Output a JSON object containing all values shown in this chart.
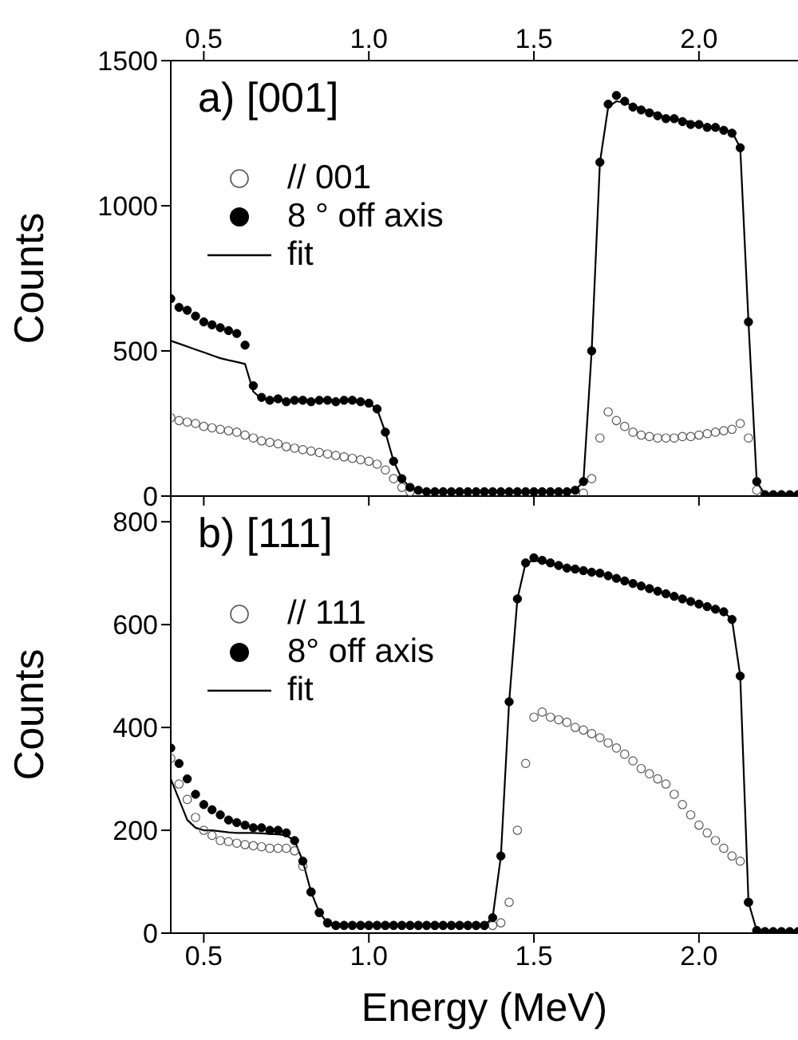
{
  "chart_data": [
    {
      "type": "scatter",
      "ylabel": "Counts",
      "annotations": [
        "a) [001]"
      ],
      "legend": "top left",
      "tick_labels": "y",
      "xlim": [
        0.4,
        2.3
      ],
      "xticks": [
        {
          "value": 0.5,
          "label": null
        },
        {
          "value": 1,
          "label": null
        },
        {
          "value": 1.5,
          "label": null
        },
        {
          "value": 2,
          "label": null
        }
      ],
      "x2lim": [
        0.4,
        2.3
      ],
      "x2ticks": [
        {
          "value": 0.5,
          "label": "0.5"
        },
        {
          "value": 1,
          "label": "1.0"
        },
        {
          "value": 1.5,
          "label": "1.5"
        },
        {
          "value": 2,
          "label": "2.0"
        }
      ],
      "ylim": [
        0,
        1500
      ],
      "yticks": [
        0,
        500,
        1000,
        1500
      ],
      "x": [
        0.4,
        0.425,
        0.45,
        0.475,
        0.5,
        0.525,
        0.55,
        0.575,
        0.6,
        0.625,
        0.65,
        0.675,
        0.7,
        0.725,
        0.75,
        0.775,
        0.8,
        0.825,
        0.85,
        0.875,
        0.9,
        0.925,
        0.95,
        0.975,
        1.0,
        1.025,
        1.05,
        1.075,
        1.1,
        1.125,
        1.15,
        1.175,
        1.2,
        1.225,
        1.25,
        1.275,
        1.3,
        1.325,
        1.35,
        1.375,
        1.4,
        1.425,
        1.45,
        1.475,
        1.5,
        1.525,
        1.55,
        1.575,
        1.6,
        1.625,
        1.65,
        1.675,
        1.7,
        1.725,
        1.75,
        1.775,
        1.8,
        1.825,
        1.85,
        1.875,
        1.9,
        1.925,
        1.95,
        1.975,
        2.0,
        2.025,
        2.05,
        2.075,
        2.1,
        2.125,
        2.15,
        2.175,
        2.2,
        2.225,
        2.25,
        2.275,
        2.3
      ],
      "series": [
        {
          "name": "// 001",
          "marker": "circle-open",
          "color": "#555555",
          "values": [
            270,
            260,
            255,
            250,
            240,
            235,
            230,
            225,
            220,
            210,
            200,
            190,
            185,
            180,
            170,
            165,
            160,
            155,
            150,
            145,
            140,
            135,
            130,
            125,
            120,
            110,
            90,
            60,
            30,
            15,
            null,
            null,
            null,
            null,
            null,
            null,
            null,
            null,
            null,
            null,
            null,
            null,
            null,
            null,
            null,
            null,
            null,
            null,
            null,
            null,
            10,
            60,
            200,
            290,
            260,
            240,
            220,
            210,
            205,
            200,
            200,
            200,
            205,
            205,
            210,
            215,
            220,
            225,
            230,
            250,
            200,
            20,
            null,
            null,
            null,
            null,
            null
          ]
        },
        {
          "name": "8 ° off axis",
          "marker": "circle",
          "color": "#000000",
          "values": [
            680,
            650,
            640,
            620,
            600,
            590,
            580,
            570,
            560,
            520,
            380,
            340,
            330,
            335,
            325,
            330,
            330,
            325,
            330,
            330,
            325,
            330,
            330,
            325,
            320,
            300,
            220,
            120,
            60,
            30,
            20,
            15,
            15,
            15,
            15,
            15,
            15,
            15,
            15,
            15,
            15,
            15,
            15,
            15,
            15,
            15,
            15,
            15,
            15,
            20,
            50,
            500,
            1150,
            1350,
            1380,
            1360,
            1340,
            1330,
            1320,
            1310,
            1300,
            1300,
            1290,
            1280,
            1280,
            1270,
            1270,
            1260,
            1250,
            1200,
            600,
            50,
            5,
            5,
            5,
            5,
            5
          ]
        },
        {
          "name": "fit",
          "type": "line",
          "marker": "none",
          "color": "#000000",
          "values": [
            535,
            525,
            515,
            505,
            495,
            485,
            475,
            468,
            462,
            455,
            360,
            335,
            330,
            330,
            330,
            330,
            330,
            330,
            330,
            330,
            330,
            328,
            326,
            324,
            320,
            300,
            220,
            120,
            60,
            30,
            20,
            15,
            15,
            15,
            15,
            15,
            15,
            15,
            15,
            15,
            15,
            15,
            15,
            15,
            15,
            15,
            15,
            15,
            15,
            20,
            50,
            500,
            1150,
            1340,
            1360,
            1355,
            1345,
            1335,
            1325,
            1315,
            1305,
            1300,
            1295,
            1288,
            1280,
            1275,
            1270,
            1262,
            1255,
            1200,
            600,
            50,
            5,
            5,
            5,
            5,
            5
          ]
        }
      ]
    },
    {
      "type": "scatter",
      "xlabel": "Energy (MeV)",
      "ylabel": "Counts",
      "annotations": [
        "b) [111]"
      ],
      "legend": "top left",
      "xlim": [
        0.4,
        2.3
      ],
      "xticks": [
        {
          "value": 0.5,
          "label": "0.5"
        },
        {
          "value": 1,
          "label": "1.0"
        },
        {
          "value": 1.5,
          "label": "1.5"
        },
        {
          "value": 2,
          "label": "2.0"
        }
      ],
      "ylim": [
        0,
        850
      ],
      "yticks": [
        0,
        200,
        400,
        600,
        800
      ],
      "x": [
        0.4,
        0.425,
        0.45,
        0.475,
        0.5,
        0.525,
        0.55,
        0.575,
        0.6,
        0.625,
        0.65,
        0.675,
        0.7,
        0.725,
        0.75,
        0.775,
        0.8,
        0.825,
        0.85,
        0.875,
        0.9,
        0.925,
        0.95,
        0.975,
        1.0,
        1.025,
        1.05,
        1.075,
        1.1,
        1.125,
        1.15,
        1.175,
        1.2,
        1.225,
        1.25,
        1.275,
        1.3,
        1.325,
        1.35,
        1.375,
        1.4,
        1.425,
        1.45,
        1.475,
        1.5,
        1.525,
        1.55,
        1.575,
        1.6,
        1.625,
        1.65,
        1.675,
        1.7,
        1.725,
        1.75,
        1.775,
        1.8,
        1.825,
        1.85,
        1.875,
        1.9,
        1.925,
        1.95,
        1.975,
        2.0,
        2.025,
        2.05,
        2.075,
        2.1,
        2.125,
        2.15,
        2.175,
        2.2,
        2.225,
        2.25,
        2.275,
        2.3
      ],
      "series": [
        {
          "name": "// 111",
          "marker": "circle-open",
          "color": "#555555",
          "values": [
            340,
            290,
            260,
            225,
            200,
            190,
            180,
            178,
            175,
            172,
            170,
            168,
            165,
            165,
            165,
            160,
            130,
            80,
            40,
            20,
            15,
            15,
            15,
            15,
            15,
            15,
            15,
            15,
            15,
            15,
            15,
            15,
            15,
            15,
            15,
            15,
            15,
            15,
            15,
            15,
            20,
            60,
            200,
            330,
            420,
            430,
            420,
            415,
            410,
            400,
            395,
            388,
            380,
            370,
            360,
            348,
            335,
            320,
            310,
            300,
            290,
            270,
            250,
            230,
            210,
            195,
            180,
            165,
            150,
            140,
            60,
            5,
            2,
            2,
            2,
            2,
            null
          ]
        },
        {
          "name": "8° off axis",
          "marker": "circle",
          "color": "#000000",
          "values": [
            360,
            330,
            300,
            270,
            250,
            240,
            230,
            220,
            215,
            210,
            205,
            205,
            200,
            200,
            195,
            180,
            140,
            80,
            40,
            20,
            15,
            15,
            15,
            15,
            15,
            15,
            15,
            15,
            15,
            15,
            15,
            15,
            15,
            15,
            15,
            15,
            15,
            15,
            15,
            30,
            150,
            450,
            650,
            720,
            730,
            725,
            720,
            715,
            710,
            708,
            705,
            702,
            700,
            695,
            690,
            685,
            680,
            675,
            670,
            665,
            660,
            655,
            650,
            645,
            640,
            635,
            630,
            625,
            610,
            500,
            60,
            5,
            3,
            3,
            3,
            3,
            3
          ]
        },
        {
          "name": "fit",
          "type": "line",
          "marker": "none",
          "color": "#000000",
          "values": [
            300,
            260,
            220,
            205,
            200,
            200,
            198,
            196,
            195,
            195,
            195,
            194,
            193,
            192,
            190,
            180,
            140,
            80,
            40,
            20,
            15,
            15,
            15,
            15,
            15,
            15,
            15,
            15,
            15,
            15,
            15,
            15,
            15,
            15,
            15,
            15,
            15,
            15,
            15,
            30,
            150,
            450,
            650,
            720,
            725,
            722,
            718,
            714,
            710,
            708,
            705,
            702,
            700,
            695,
            690,
            685,
            680,
            675,
            670,
            665,
            660,
            655,
            650,
            645,
            640,
            635,
            630,
            625,
            610,
            500,
            60,
            5,
            3,
            3,
            3,
            3,
            3
          ]
        }
      ]
    }
  ]
}
